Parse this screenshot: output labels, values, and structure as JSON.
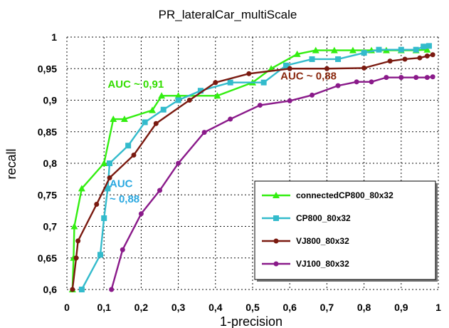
{
  "chart_data": {
    "type": "line",
    "title": "PR_lateralCar_multiScale",
    "xlabel": "1-precision",
    "ylabel": "recall",
    "xlim": [
      0,
      1
    ],
    "ylim": [
      0.6,
      1
    ],
    "grid": true,
    "legend_position": "bottom-right",
    "x_ticks": [
      "0",
      "0,1",
      "0,2",
      "0,3",
      "0,4",
      "0,5",
      "0,6",
      "0,7",
      "0,8",
      "0,9",
      "1"
    ],
    "y_ticks": [
      "0,6",
      "0,65",
      "0,7",
      "0,75",
      "0,8",
      "0,85",
      "0,9",
      "0,95",
      "1"
    ],
    "series": [
      {
        "name": "connectedCP800_80x32",
        "color": "#33ee11",
        "marker": "triangle",
        "points": [
          [
            0.015,
            0.6
          ],
          [
            0.018,
            0.65
          ],
          [
            0.02,
            0.7
          ],
          [
            0.04,
            0.76
          ],
          [
            0.1,
            0.8
          ],
          [
            0.125,
            0.87
          ],
          [
            0.155,
            0.87
          ],
          [
            0.23,
            0.884
          ],
          [
            0.255,
            0.907
          ],
          [
            0.3,
            0.907
          ],
          [
            0.405,
            0.907
          ],
          [
            0.5,
            0.928
          ],
          [
            0.55,
            0.95
          ],
          [
            0.62,
            0.973
          ],
          [
            0.67,
            0.979
          ],
          [
            0.72,
            0.979
          ],
          [
            0.77,
            0.979
          ],
          [
            0.82,
            0.979
          ],
          [
            0.86,
            0.979
          ],
          [
            0.9,
            0.979
          ],
          [
            0.94,
            0.979
          ],
          [
            0.97,
            0.98
          ]
        ]
      },
      {
        "name": "CP800_80x32",
        "color": "#33bbcc",
        "marker": "square",
        "points": [
          [
            0.04,
            0.6
          ],
          [
            0.09,
            0.655
          ],
          [
            0.1,
            0.713
          ],
          [
            0.11,
            0.76
          ],
          [
            0.115,
            0.8
          ],
          [
            0.165,
            0.828
          ],
          [
            0.21,
            0.865
          ],
          [
            0.26,
            0.885
          ],
          [
            0.3,
            0.9
          ],
          [
            0.36,
            0.915
          ],
          [
            0.44,
            0.928
          ],
          [
            0.53,
            0.928
          ],
          [
            0.59,
            0.955
          ],
          [
            0.66,
            0.965
          ],
          [
            0.73,
            0.965
          ],
          [
            0.8,
            0.975
          ],
          [
            0.84,
            0.98
          ],
          [
            0.9,
            0.98
          ],
          [
            0.94,
            0.98
          ],
          [
            0.96,
            0.985
          ],
          [
            0.975,
            0.986
          ]
        ]
      },
      {
        "name": "VJ800_80x32",
        "color": "#7a1a10",
        "marker": "circle",
        "points": [
          [
            0.015,
            0.6
          ],
          [
            0.025,
            0.65
          ],
          [
            0.03,
            0.677
          ],
          [
            0.08,
            0.735
          ],
          [
            0.115,
            0.777
          ],
          [
            0.18,
            0.813
          ],
          [
            0.24,
            0.863
          ],
          [
            0.33,
            0.9
          ],
          [
            0.4,
            0.928
          ],
          [
            0.49,
            0.942
          ],
          [
            0.6,
            0.95
          ],
          [
            0.7,
            0.95
          ],
          [
            0.8,
            0.951
          ],
          [
            0.87,
            0.962
          ],
          [
            0.91,
            0.965
          ],
          [
            0.95,
            0.967
          ],
          [
            0.97,
            0.97
          ],
          [
            0.985,
            0.972
          ]
        ]
      },
      {
        "name": "VJ100_80x32",
        "color": "#8a1a8a",
        "marker": "circle",
        "points": [
          [
            0.12,
            0.6
          ],
          [
            0.15,
            0.663
          ],
          [
            0.2,
            0.72
          ],
          [
            0.25,
            0.757
          ],
          [
            0.3,
            0.8
          ],
          [
            0.37,
            0.849
          ],
          [
            0.44,
            0.87
          ],
          [
            0.52,
            0.892
          ],
          [
            0.6,
            0.899
          ],
          [
            0.66,
            0.908
          ],
          [
            0.73,
            0.923
          ],
          [
            0.78,
            0.929
          ],
          [
            0.82,
            0.929
          ],
          [
            0.86,
            0.936
          ],
          [
            0.9,
            0.936
          ],
          [
            0.94,
            0.936
          ],
          [
            0.97,
            0.936
          ],
          [
            0.985,
            0.937
          ]
        ]
      }
    ],
    "annotations": [
      {
        "text": "AUC ~ 0,91",
        "color": "#33dd00",
        "x": 0.11,
        "y": 0.92
      },
      {
        "text": "AUC ~ 0,88",
        "color": "#8b2a10",
        "x": 0.575,
        "y": 0.933
      },
      {
        "text": "AUC",
        "color": "#2aa8e0",
        "x": 0.115,
        "y": 0.762
      },
      {
        "text": "~ 0,88",
        "color": "#2aa8e0",
        "x": 0.115,
        "y": 0.738
      }
    ]
  }
}
